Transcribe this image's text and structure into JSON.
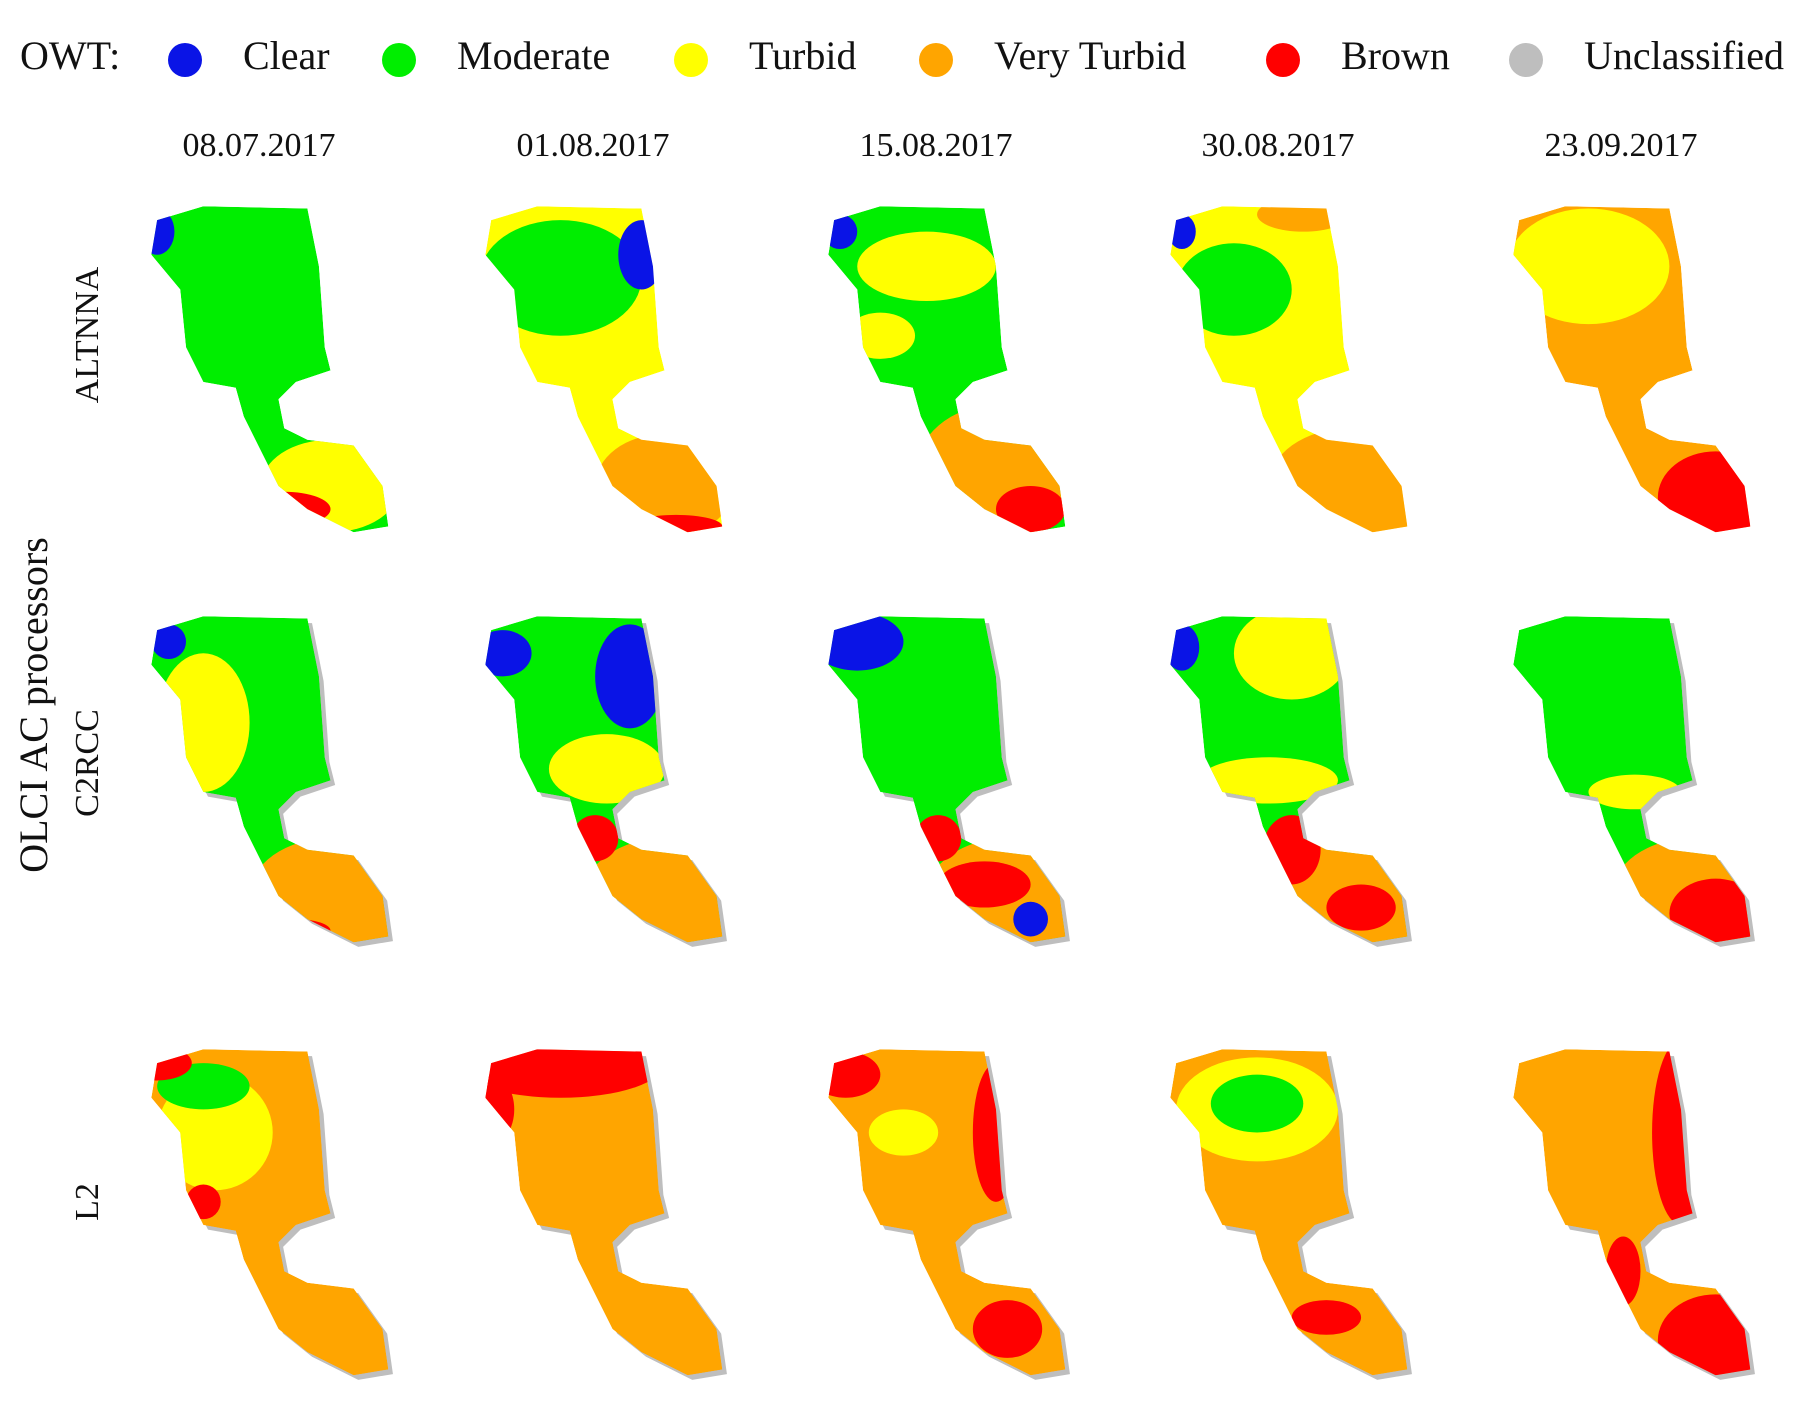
{
  "legend": {
    "title": "OWT:",
    "items": [
      {
        "label": "Clear",
        "color": "#0a14e6"
      },
      {
        "label": "Moderate",
        "color": "#00ee00"
      },
      {
        "label": "Turbid",
        "color": "#ffff00"
      },
      {
        "label": "Very Turbid",
        "color": "#ffa500"
      },
      {
        "label": "Brown",
        "color": "#ff0000"
      },
      {
        "label": "Unclassified",
        "color": "#bebebe"
      }
    ]
  },
  "columns": [
    "08.07.2017",
    "01.08.2017",
    "15.08.2017",
    "30.08.2017",
    "23.09.2017"
  ],
  "rows": [
    "ALTNNA",
    "C2RCC",
    "L2"
  ],
  "axis_label": "OLCI AC processors"
}
